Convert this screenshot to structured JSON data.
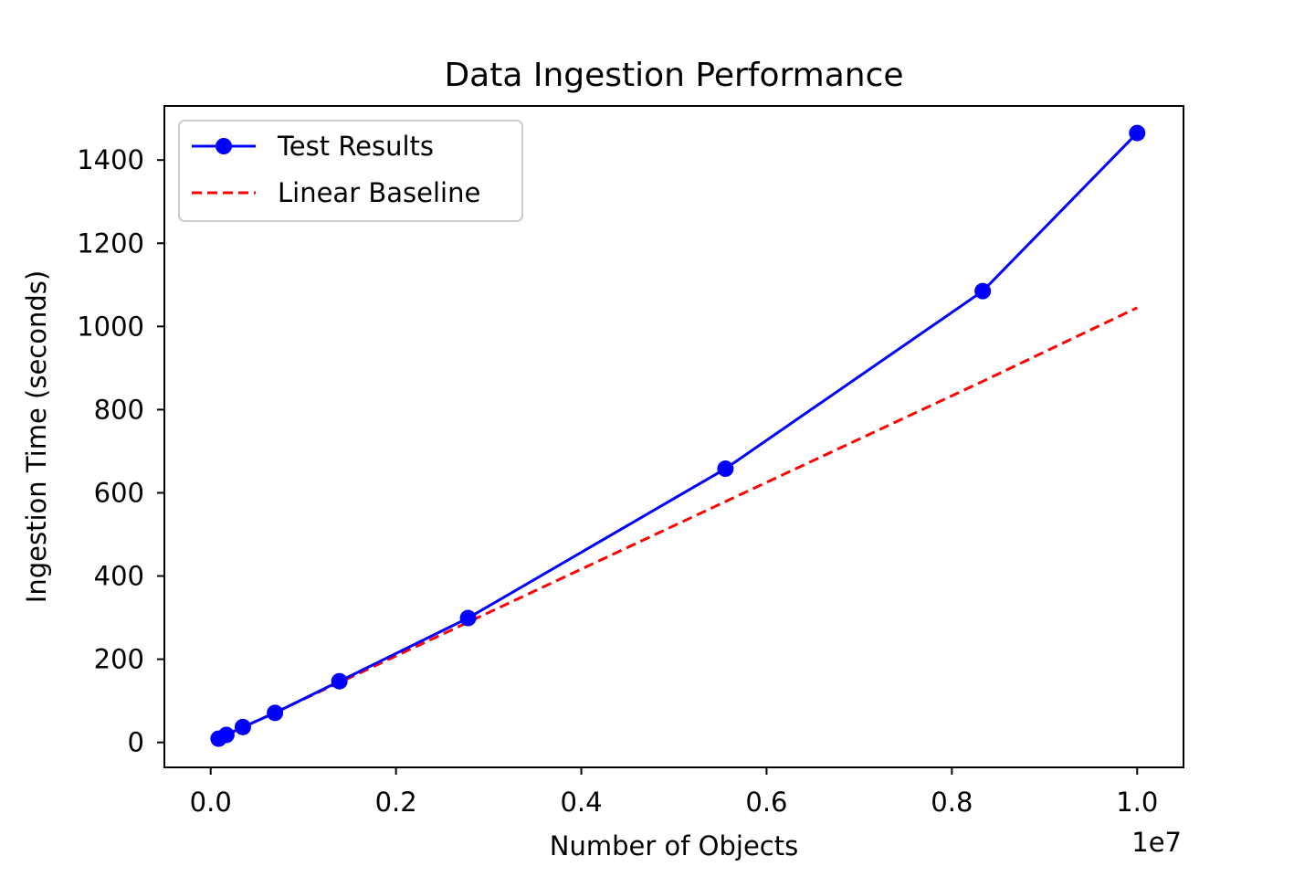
{
  "chart_data": {
    "type": "line",
    "title": "Data Ingestion Performance",
    "xlabel": "Number of Objects",
    "ylabel": "Ingestion Time (seconds)",
    "x_offset_label": "1e7",
    "xlim": [
      -0.05,
      1.05
    ],
    "ylim": [
      -60,
      1530
    ],
    "x_ticks": [
      0.0,
      0.2,
      0.4,
      0.6,
      0.8,
      1.0
    ],
    "x_tick_labels": [
      "0.0",
      "0.2",
      "0.4",
      "0.6",
      "0.8",
      "1.0"
    ],
    "y_ticks": [
      0,
      200,
      400,
      600,
      800,
      1000,
      1200,
      1400
    ],
    "y_tick_labels": [
      "0",
      "200",
      "400",
      "600",
      "800",
      "1000",
      "1200",
      "1400"
    ],
    "grid": false,
    "legend_position": "upper-left",
    "series": [
      {
        "name": "Test Results",
        "style": "solid-with-markers",
        "color": "#0000ff",
        "x": [
          0.0085,
          0.0169,
          0.0347,
          0.0694,
          0.1389,
          0.2778,
          0.5556,
          0.8333,
          1.0
        ],
        "y": [
          9,
          18,
          37,
          71,
          147,
          299,
          658,
          1085,
          1465
        ]
      },
      {
        "name": "Linear Baseline",
        "style": "dashed",
        "color": "#ff0000",
        "x": [
          0.0085,
          0.1389,
          0.2778,
          0.5556,
          0.8333,
          1.0
        ],
        "y": [
          9,
          144,
          289,
          579,
          868,
          1045
        ]
      }
    ]
  }
}
